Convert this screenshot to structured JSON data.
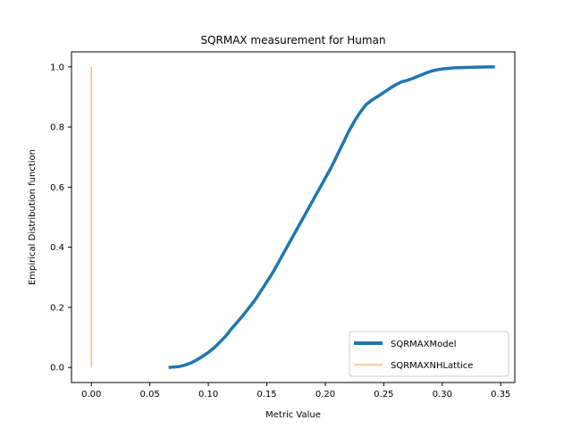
{
  "chart_data": {
    "type": "line",
    "title": "SQRMAX measurement for Human",
    "xlabel": "Metric Value",
    "ylabel": "Empirical Distribution function",
    "xlim": [
      -0.017,
      0.362
    ],
    "ylim": [
      -0.05,
      1.05
    ],
    "xticks": [
      0.0,
      0.05,
      0.1,
      0.15,
      0.2,
      0.25,
      0.3,
      0.35
    ],
    "xtick_labels": [
      "0.00",
      "0.05",
      "0.10",
      "0.15",
      "0.20",
      "0.25",
      "0.30",
      "0.35"
    ],
    "yticks": [
      0.0,
      0.2,
      0.4,
      0.6,
      0.8,
      1.0
    ],
    "ytick_labels": [
      "0.0",
      "0.2",
      "0.4",
      "0.6",
      "0.8",
      "1.0"
    ],
    "grid": false,
    "legend_position": "lower-right",
    "series": [
      {
        "name": "SQRMAXModel",
        "color": "#1f77b4",
        "x": [
          0.066,
          0.075,
          0.08,
          0.085,
          0.09,
          0.095,
          0.1,
          0.105,
          0.11,
          0.115,
          0.12,
          0.125,
          0.13,
          0.135,
          0.14,
          0.145,
          0.15,
          0.155,
          0.16,
          0.165,
          0.17,
          0.175,
          0.18,
          0.185,
          0.19,
          0.195,
          0.2,
          0.205,
          0.21,
          0.215,
          0.22,
          0.225,
          0.23,
          0.235,
          0.24,
          0.245,
          0.25,
          0.255,
          0.26,
          0.265,
          0.27,
          0.275,
          0.28,
          0.285,
          0.29,
          0.295,
          0.3,
          0.305,
          0.31,
          0.32,
          0.33,
          0.34,
          0.345
        ],
        "y": [
          0.0,
          0.003,
          0.008,
          0.015,
          0.025,
          0.037,
          0.05,
          0.066,
          0.085,
          0.105,
          0.13,
          0.152,
          0.175,
          0.2,
          0.225,
          0.255,
          0.285,
          0.315,
          0.35,
          0.385,
          0.42,
          0.455,
          0.49,
          0.525,
          0.56,
          0.595,
          0.63,
          0.665,
          0.705,
          0.745,
          0.785,
          0.82,
          0.85,
          0.875,
          0.89,
          0.902,
          0.915,
          0.928,
          0.94,
          0.95,
          0.955,
          0.962,
          0.97,
          0.978,
          0.985,
          0.99,
          0.993,
          0.995,
          0.997,
          0.998,
          0.999,
          1.0,
          1.0
        ]
      },
      {
        "name": "SQRMAXNHLattice",
        "color": "#ffbb78",
        "x": [
          0.0,
          0.0
        ],
        "y": [
          0.0,
          1.0
        ]
      }
    ]
  }
}
